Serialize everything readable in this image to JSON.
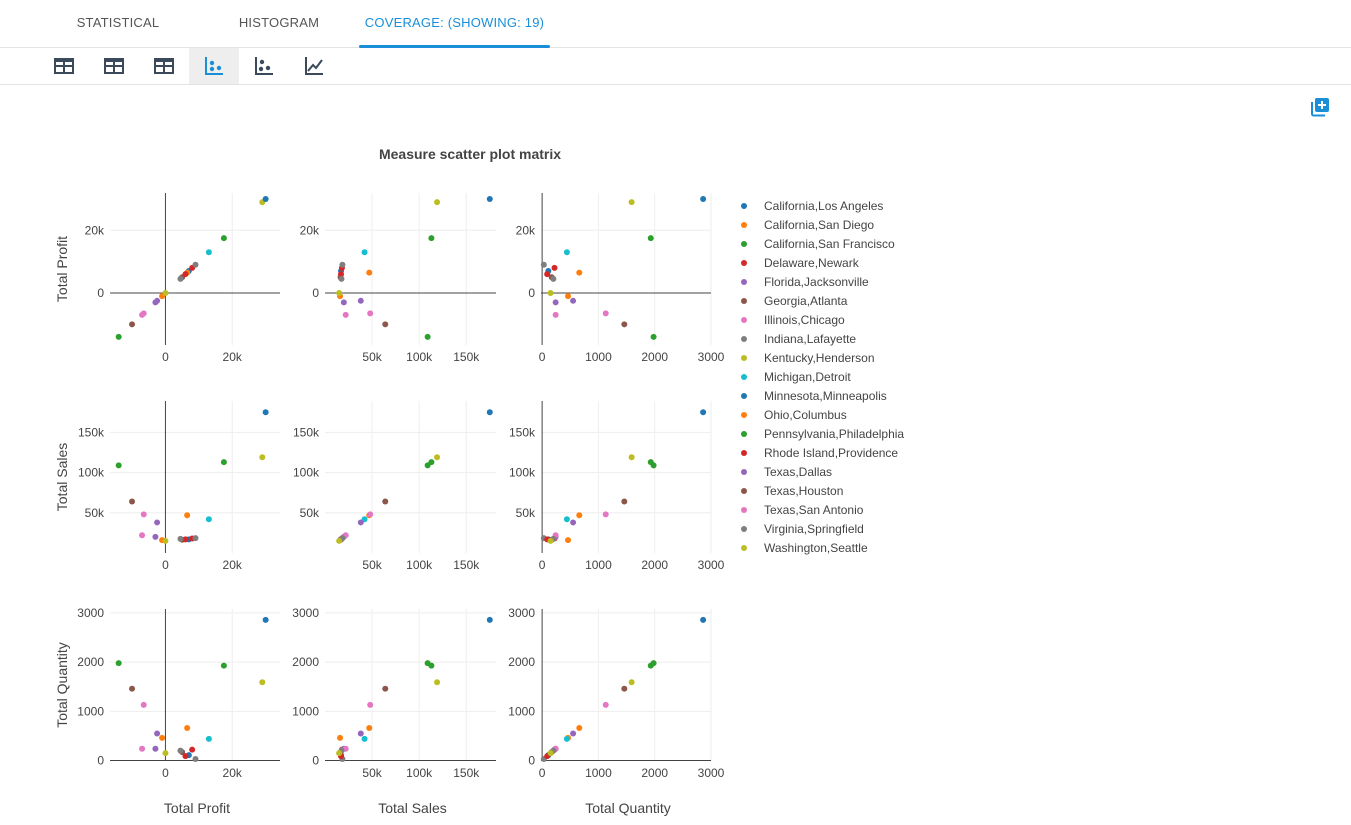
{
  "tabs": [
    {
      "label": "STATISTICAL",
      "active": false
    },
    {
      "label": "HISTOGRAM",
      "active": false
    },
    {
      "label": "COVERAGE: (SHOWING: 19)",
      "active": true
    }
  ],
  "toolbar": {
    "buttons": [
      {
        "icon": "table-icon",
        "active": false
      },
      {
        "icon": "table-icon",
        "active": false
      },
      {
        "icon": "table-icon",
        "active": false
      },
      {
        "icon": "scatter-icon",
        "active": true
      },
      {
        "icon": "scatter-icon",
        "active": false
      },
      {
        "icon": "line-chart-icon",
        "active": false
      }
    ],
    "add_icon": "add-chart-icon",
    "accent": "#1a8fd8"
  },
  "chart_data": {
    "type": "scatter",
    "title": "Measure scatter plot matrix",
    "dimensions": [
      {
        "name": "Total Profit",
        "ticks": [
          0,
          20000
        ],
        "tick_labels": [
          "0",
          "20k"
        ],
        "y_ticks": [
          0,
          20000
        ],
        "y_tick_labels": [
          "0",
          "20k"
        ]
      },
      {
        "name": "Total Sales",
        "ticks": [
          50000,
          100000,
          150000
        ],
        "tick_labels": [
          "50k",
          "100k",
          "150k"
        ],
        "y_ticks": [
          50000,
          100000,
          150000
        ],
        "y_tick_labels": [
          "50k",
          "100k",
          "150k"
        ]
      },
      {
        "name": "Total Quantity",
        "ticks": [
          0,
          1000,
          2000,
          3000
        ],
        "tick_labels": [
          "0",
          "1000",
          "2000",
          "3000"
        ],
        "y_ticks": [
          0,
          1000,
          2000,
          3000
        ],
        "y_tick_labels": [
          "0",
          "1000",
          "2000",
          "3000"
        ]
      }
    ],
    "grid": true,
    "legend_position": "right",
    "points": [
      {
        "name": "California,Los Angeles",
        "color": "#1f77b4",
        "profit": 7000,
        "sales": 17000,
        "quantity": 110
      },
      {
        "name": "California,San Diego",
        "color": "#ff7f0e",
        "profit": -1000,
        "sales": 16000,
        "quantity": 460
      },
      {
        "name": "California,San Francisco",
        "color": "#2ca02c",
        "profit": -14000,
        "sales": 109000,
        "quantity": 1980
      },
      {
        "name": "Delaware,Newark",
        "color": "#d62728",
        "profit": 8000,
        "sales": 18000,
        "quantity": 220
      },
      {
        "name": "Florida,Jacksonville",
        "color": "#9467bd",
        "profit": -3000,
        "sales": 20000,
        "quantity": 240
      },
      {
        "name": "Georgia,Atlanta",
        "color": "#8c564b",
        "profit": 5000,
        "sales": 16500,
        "quantity": 170
      },
      {
        "name": "Illinois,Chicago",
        "color": "#e377c2",
        "profit": -7000,
        "sales": 22000,
        "quantity": 240
      },
      {
        "name": "Indiana,Lafayette",
        "color": "#7f7f7f",
        "profit": 9000,
        "sales": 18500,
        "quantity": 30
      },
      {
        "name": "Kentucky,Henderson",
        "color": "#bcbd22",
        "profit": 29000,
        "sales": 119000,
        "quantity": 1590
      },
      {
        "name": "Michigan,Detroit",
        "color": "#17becf",
        "profit": 13000,
        "sales": 42000,
        "quantity": 440
      },
      {
        "name": "Minnesota,Minneapolis",
        "color": "#1f77b4",
        "profit": 30000,
        "sales": 175000,
        "quantity": 2860
      },
      {
        "name": "Ohio,Columbus",
        "color": "#ff7f0e",
        "profit": 6500,
        "sales": 47000,
        "quantity": 660
      },
      {
        "name": "Pennsylvania,Philadelphia",
        "color": "#2ca02c",
        "profit": 17500,
        "sales": 113000,
        "quantity": 1930
      },
      {
        "name": "Rhode Island,Providence",
        "color": "#d62728",
        "profit": 6000,
        "sales": 17000,
        "quantity": 90
      },
      {
        "name": "Texas,Dallas",
        "color": "#9467bd",
        "profit": -2500,
        "sales": 38000,
        "quantity": 550
      },
      {
        "name": "Texas,Houston",
        "color": "#8c564b",
        "profit": -10000,
        "sales": 64000,
        "quantity": 1460
      },
      {
        "name": "Texas,San Antonio",
        "color": "#e377c2",
        "profit": -6500,
        "sales": 48000,
        "quantity": 1130
      },
      {
        "name": "Virginia,Springfield",
        "color": "#7f7f7f",
        "profit": 4500,
        "sales": 17500,
        "quantity": 200
      },
      {
        "name": "Washington,Seattle",
        "color": "#bcbd22",
        "profit": 0,
        "sales": 15000,
        "quantity": 150
      }
    ]
  }
}
